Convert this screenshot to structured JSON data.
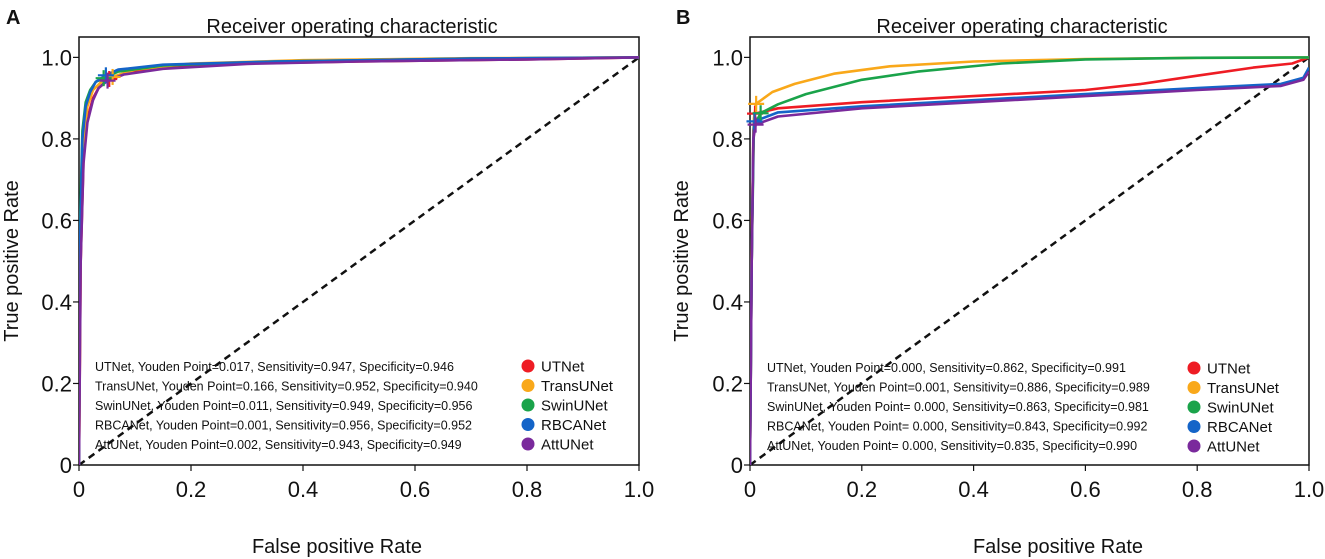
{
  "chart_data": [
    {
      "panel": "A",
      "type": "line",
      "title": "Receiver operating characteristic",
      "xlabel": "False positive Rate",
      "ylabel": "True positive Rate",
      "xlim": [
        0,
        1
      ],
      "ylim": [
        0,
        1.05
      ],
      "xticks": [
        "0",
        "0.2",
        "0.4",
        "0.6",
        "0.8",
        "1.0"
      ],
      "yticks": [
        "0",
        "0.2",
        "0.4",
        "0.6",
        "0.8",
        "1.0"
      ],
      "xtick_values": [
        0,
        0.2,
        0.4,
        0.6,
        0.8,
        1.0
      ],
      "ytick_values": [
        0,
        0.2,
        0.4,
        0.6,
        0.8,
        1.0
      ],
      "legend_position": "bottom-right",
      "series": [
        {
          "name": "UTNet",
          "color": "#ee1c24",
          "x": [
            0,
            0.003,
            0.008,
            0.015,
            0.025,
            0.035,
            0.053,
            0.08,
            0.15,
            0.3,
            0.5,
            0.8,
            1.0
          ],
          "y": [
            0,
            0.5,
            0.75,
            0.85,
            0.9,
            0.925,
            0.947,
            0.96,
            0.975,
            0.985,
            0.99,
            0.995,
            1.0
          ],
          "youden": {
            "x": 0.054,
            "y": 0.947
          }
        },
        {
          "name": "TransUNet",
          "color": "#f9a81a",
          "x": [
            0,
            0.003,
            0.008,
            0.015,
            0.025,
            0.04,
            0.06,
            0.1,
            0.2,
            0.4,
            0.7,
            1.0
          ],
          "y": [
            0,
            0.55,
            0.8,
            0.88,
            0.92,
            0.94,
            0.952,
            0.97,
            0.985,
            0.993,
            0.998,
            1.0
          ],
          "youden": {
            "x": 0.06,
            "y": 0.952
          }
        },
        {
          "name": "SwinUNet",
          "color": "#1aa34a",
          "x": [
            0,
            0.002,
            0.006,
            0.012,
            0.02,
            0.03,
            0.044,
            0.07,
            0.15,
            0.35,
            0.7,
            1.0
          ],
          "y": [
            0,
            0.6,
            0.82,
            0.89,
            0.92,
            0.94,
            0.949,
            0.965,
            0.98,
            0.99,
            0.997,
            1.0
          ],
          "youden": {
            "x": 0.044,
            "y": 0.949
          }
        },
        {
          "name": "RBCANet",
          "color": "#1464c8",
          "x": [
            0,
            0.002,
            0.006,
            0.012,
            0.02,
            0.03,
            0.048,
            0.07,
            0.15,
            0.35,
            0.7,
            1.0
          ],
          "y": [
            0,
            0.55,
            0.8,
            0.88,
            0.915,
            0.94,
            0.956,
            0.97,
            0.982,
            0.99,
            0.997,
            1.0
          ],
          "youden": {
            "x": 0.048,
            "y": 0.956
          }
        },
        {
          "name": "AttUNet",
          "color": "#7a2a9c",
          "x": [
            0,
            0.003,
            0.008,
            0.015,
            0.025,
            0.035,
            0.051,
            0.08,
            0.15,
            0.3,
            0.5,
            0.8,
            1.0
          ],
          "y": [
            0,
            0.5,
            0.74,
            0.84,
            0.895,
            0.925,
            0.943,
            0.958,
            0.972,
            0.984,
            0.99,
            0.995,
            1.0
          ],
          "youden": {
            "x": 0.051,
            "y": 0.943
          }
        }
      ],
      "diagonal": {
        "x": [
          0,
          1
        ],
        "y": [
          0,
          1
        ],
        "style": "dashed",
        "color": "#111111"
      },
      "stats": [
        "UTNet, Youden Point=0.017, Sensitivity=0.947, Specificity=0.946",
        "TransUNet, Youden Point=0.166, Sensitivity=0.952, Specificity=0.940",
        "SwinUNet, Youden Point=0.011, Sensitivity=0.949, Specificity=0.956",
        "RBCANet, Youden Point=0.001, Sensitivity=0.956, Specificity=0.952",
        "AttUNet, Youden Point=0.002, Sensitivity=0.943, Specificity=0.949"
      ]
    },
    {
      "panel": "B",
      "type": "line",
      "title": "Receiver operating characteristic",
      "xlabel": "False positive Rate",
      "ylabel": "True positive Rate",
      "xlim": [
        0,
        1
      ],
      "ylim": [
        0,
        1.05
      ],
      "xticks": [
        "0",
        "0.2",
        "0.4",
        "0.6",
        "0.8",
        "1.0"
      ],
      "yticks": [
        "0",
        "0.2",
        "0.4",
        "0.6",
        "0.8",
        "1.0"
      ],
      "xtick_values": [
        0,
        0.2,
        0.4,
        0.6,
        0.8,
        1.0
      ],
      "ytick_values": [
        0,
        0.2,
        0.4,
        0.6,
        0.8,
        1.0
      ],
      "legend_position": "bottom-right",
      "series": [
        {
          "name": "UTNet",
          "color": "#ee1c24",
          "x": [
            0,
            0.003,
            0.006,
            0.009,
            0.05,
            0.2,
            0.4,
            0.6,
            0.7,
            0.8,
            0.9,
            0.97,
            1.0
          ],
          "y": [
            0,
            0.5,
            0.82,
            0.862,
            0.875,
            0.89,
            0.905,
            0.92,
            0.935,
            0.955,
            0.975,
            0.985,
            1.0
          ],
          "youden": {
            "x": 0.009,
            "y": 0.862
          }
        },
        {
          "name": "TransUNet",
          "color": "#f9a81a",
          "x": [
            0,
            0.003,
            0.007,
            0.011,
            0.04,
            0.08,
            0.15,
            0.25,
            0.4,
            0.6,
            0.8,
            1.0
          ],
          "y": [
            0,
            0.55,
            0.85,
            0.886,
            0.915,
            0.935,
            0.96,
            0.978,
            0.99,
            0.996,
            0.999,
            1.0
          ],
          "youden": {
            "x": 0.011,
            "y": 0.886
          }
        },
        {
          "name": "SwinUNet",
          "color": "#1aa34a",
          "x": [
            0,
            0.003,
            0.007,
            0.019,
            0.05,
            0.1,
            0.2,
            0.3,
            0.45,
            0.6,
            0.8,
            1.0
          ],
          "y": [
            0,
            0.5,
            0.83,
            0.863,
            0.885,
            0.91,
            0.945,
            0.965,
            0.985,
            0.995,
            0.999,
            1.0
          ],
          "youden": {
            "x": 0.019,
            "y": 0.863
          }
        },
        {
          "name": "RBCANet",
          "color": "#1464c8",
          "x": [
            0,
            0.003,
            0.006,
            0.008,
            0.05,
            0.2,
            0.4,
            0.6,
            0.8,
            0.95,
            0.99,
            1.0
          ],
          "y": [
            0,
            0.5,
            0.8,
            0.843,
            0.865,
            0.88,
            0.895,
            0.91,
            0.925,
            0.935,
            0.95,
            0.975
          ],
          "youden": {
            "x": 0.008,
            "y": 0.843
          }
        },
        {
          "name": "AttUNet",
          "color": "#7a2a9c",
          "x": [
            0,
            0.003,
            0.006,
            0.01,
            0.05,
            0.2,
            0.4,
            0.6,
            0.8,
            0.95,
            0.99,
            1.0
          ],
          "y": [
            0,
            0.5,
            0.8,
            0.835,
            0.855,
            0.875,
            0.89,
            0.905,
            0.92,
            0.93,
            0.945,
            0.965
          ],
          "youden": {
            "x": 0.01,
            "y": 0.835
          }
        }
      ],
      "diagonal": {
        "x": [
          0,
          1
        ],
        "y": [
          0,
          1
        ],
        "style": "dashed",
        "color": "#111111"
      },
      "stats": [
        "UTNet, Youden Point=0.000, Sensitivity=0.862, Specificity=0.991",
        "TransUNet, Youden Point=0.001, Sensitivity=0.886, Specificity=0.989",
        "SwinUNet, Youden Point= 0.000, Sensitivity=0.863, Specificity=0.981",
        "RBCANet, Youden Point= 0.000, Sensitivity=0.843, Specificity=0.992",
        "AttUNet, Youden Point= 0.000, Sensitivity=0.835, Specificity=0.990"
      ]
    }
  ]
}
